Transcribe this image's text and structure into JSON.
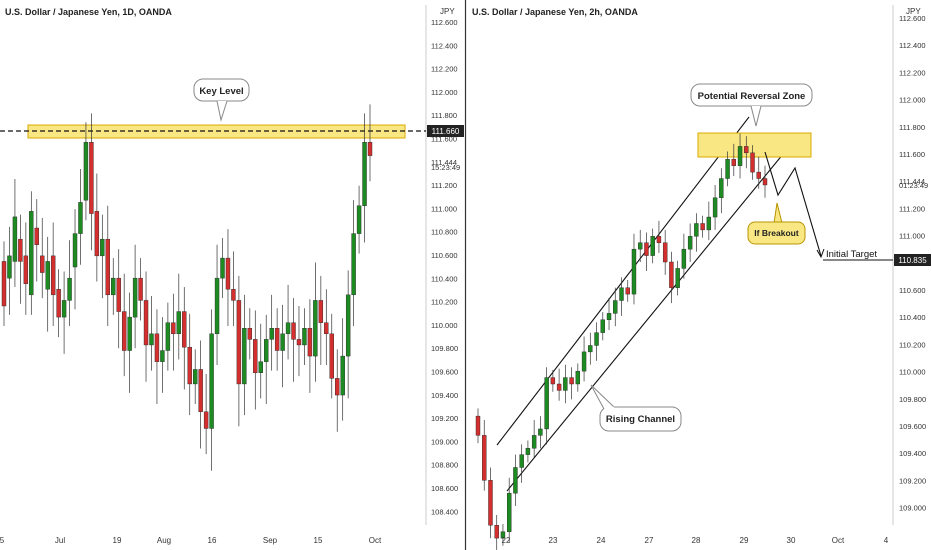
{
  "colors": {
    "up": "#1e8a22",
    "down": "#d32f2f",
    "zone_fill": "#f9e784",
    "zone_stroke": "#d9a800",
    "axis_text": "#2a2a2a",
    "divider": "#333333"
  },
  "charts": [
    {
      "title": "U.S. Dollar / Japanese Yen, 1D, OANDA",
      "currency": "JPY",
      "price_ticks": [
        "112.600",
        "112.400",
        "112.200",
        "112.000",
        "111.800",
        "111.600",
        "111.444",
        "111.200",
        "111.000",
        "110.800",
        "110.600",
        "110.400",
        "110.200",
        "110.000",
        "109.800",
        "109.600",
        "109.400",
        "109.200",
        "109.000",
        "108.800",
        "108.600",
        "108.400"
      ],
      "price_label": "111.660",
      "last_price": "111.444",
      "countdown": "15:23:49",
      "date_ticks": [
        "5",
        "Jul",
        "19",
        "Aug",
        "16",
        "Sep",
        "15",
        "Oct"
      ],
      "annotations": {
        "key_level": "Key Level"
      }
    },
    {
      "title": "U.S. Dollar / Japanese Yen, 2h, OANDA",
      "currency": "JPY",
      "price_ticks": [
        "112.600",
        "112.400",
        "112.200",
        "112.000",
        "111.800",
        "111.600",
        "111.444",
        "111.200",
        "111.000",
        "110.800",
        "110.600",
        "110.400",
        "110.200",
        "110.000",
        "109.800",
        "109.600",
        "109.400",
        "109.200",
        "109.000"
      ],
      "price_label": "110.835",
      "last_price": "111.444",
      "countdown": "01:23:49",
      "date_ticks": [
        "22",
        "23",
        "24",
        "27",
        "28",
        "29",
        "30",
        "Oct",
        "4"
      ],
      "annotations": {
        "reversal": "Potential Reversal Zone",
        "breakout": "If Breakout",
        "target": "Initial Target",
        "channel": "Rising Channel"
      }
    }
  ],
  "chart_data": [
    {
      "type": "candlestick",
      "title": "U.S. Dollar / Japanese Yen, 1D, OANDA",
      "yunit": "JPY",
      "ylim": [
        108.3,
        112.7
      ],
      "x_labels": [
        "5",
        "Jul",
        "19",
        "Aug",
        "16",
        "Sep",
        "15",
        "Oct"
      ],
      "key_level": [
        111.62,
        111.78
      ],
      "series_close": [
        110.15,
        110.6,
        110.95,
        110.55,
        110.35,
        111.0,
        110.7,
        110.45,
        110.55,
        110.25,
        110.05,
        110.2,
        110.4,
        110.8,
        111.08,
        111.62,
        110.98,
        110.6,
        110.75,
        110.25,
        110.4,
        110.1,
        109.75,
        110.05,
        110.4,
        110.2,
        109.8,
        109.9,
        109.65,
        109.75,
        110.0,
        109.9,
        110.1,
        109.78,
        109.45,
        109.58,
        109.2,
        109.05,
        109.9,
        110.4,
        110.58,
        110.3,
        110.2,
        109.45,
        109.95,
        109.85,
        109.55,
        109.65,
        109.85,
        109.95,
        109.75,
        109.9,
        110.0,
        109.85,
        109.8,
        109.95,
        109.7,
        110.2,
        110.0,
        109.9,
        109.5,
        109.35,
        109.7,
        110.25,
        110.8,
        111.05,
        111.62,
        111.5
      ],
      "series_open": [
        110.55,
        110.4,
        110.55,
        110.75,
        110.6,
        110.25,
        110.85,
        110.6,
        110.3,
        110.6,
        110.3,
        110.05,
        110.2,
        110.5,
        110.8,
        111.1,
        111.62,
        111.0,
        110.6,
        110.75,
        110.25,
        110.4,
        110.1,
        109.75,
        110.05,
        110.4,
        110.2,
        109.8,
        109.9,
        109.65,
        109.75,
        110.0,
        109.9,
        110.1,
        109.78,
        109.45,
        109.58,
        109.2,
        109.05,
        109.9,
        110.4,
        110.58,
        110.3,
        110.2,
        109.45,
        109.95,
        109.85,
        109.55,
        109.65,
        109.85,
        109.95,
        109.75,
        109.9,
        110.0,
        109.85,
        109.8,
        109.95,
        109.7,
        110.2,
        110.0,
        109.9,
        109.5,
        109.35,
        109.7,
        110.25,
        110.8,
        111.05,
        111.62
      ]
    },
    {
      "type": "candlestick",
      "title": "U.S. Dollar / Japanese Yen, 2h, OANDA",
      "yunit": "JPY",
      "ylim": [
        108.9,
        112.7
      ],
      "x_labels": [
        "22",
        "23",
        "24",
        "27",
        "28",
        "29",
        "30",
        "Oct",
        "4"
      ],
      "reversal_zone": [
        111.6,
        111.77
      ],
      "initial_target": 110.835,
      "series_close": [
        109.45,
        109.1,
        108.75,
        108.65,
        108.7,
        109.0,
        109.2,
        109.3,
        109.35,
        109.45,
        109.5,
        109.9,
        109.85,
        109.8,
        109.9,
        109.85,
        109.95,
        110.1,
        110.15,
        110.25,
        110.35,
        110.4,
        110.5,
        110.6,
        110.55,
        110.9,
        110.95,
        110.85,
        111.0,
        110.95,
        110.8,
        110.6,
        110.75,
        110.9,
        111.0,
        111.1,
        111.05,
        111.15,
        111.3,
        111.45,
        111.6,
        111.55,
        111.7,
        111.65,
        111.5,
        111.45,
        111.4
      ],
      "series_open": [
        109.6,
        109.45,
        109.1,
        108.75,
        108.65,
        108.7,
        109.0,
        109.2,
        109.3,
        109.35,
        109.45,
        109.5,
        109.9,
        109.85,
        109.8,
        109.9,
        109.85,
        109.95,
        110.1,
        110.15,
        110.25,
        110.35,
        110.4,
        110.5,
        110.6,
        110.55,
        110.9,
        110.95,
        110.85,
        111.0,
        110.95,
        110.8,
        110.6,
        110.75,
        110.9,
        111.0,
        111.1,
        111.05,
        111.15,
        111.3,
        111.45,
        111.6,
        111.55,
        111.7,
        111.65,
        111.5,
        111.45
      ]
    }
  ]
}
